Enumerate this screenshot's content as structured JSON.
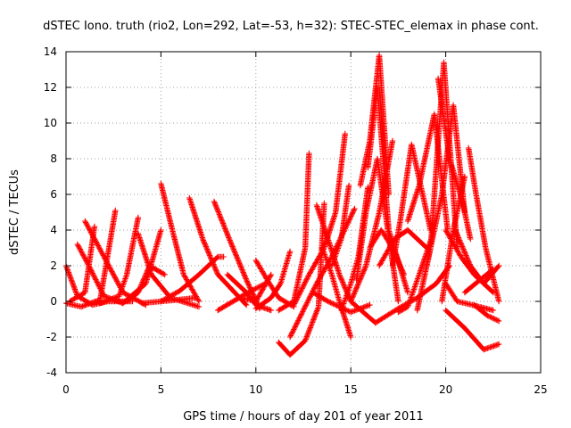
{
  "chart_data": {
    "type": "scatter",
    "title": "dSTEC Iono. truth (rio2, Lon=292, Lat=-53, h=32): STEC-STEC_elemax in phase cont.",
    "xlabel": "GPS time / hours of day 201 of year 2011",
    "ylabel": "dSTEC  / TECUs",
    "xlim": [
      0,
      25
    ],
    "ylim": [
      -4,
      14
    ],
    "x_ticks": [
      0,
      5,
      10,
      15,
      20,
      25
    ],
    "y_ticks": [
      -4,
      -2,
      0,
      2,
      4,
      6,
      8,
      10,
      12,
      14
    ],
    "x_tick_labels": [
      "0",
      "5",
      "10",
      "15",
      "20",
      "25"
    ],
    "y_tick_labels": [
      "-4",
      "-2",
      "0",
      "2",
      "4",
      "6",
      "8",
      "10",
      "12",
      "14"
    ],
    "grid": true,
    "marker": "plus",
    "color": "#ff0000",
    "series": [
      {
        "x": [
          0,
          0.8,
          1.8,
          2.6
        ],
        "y": [
          -0.1,
          -0.3,
          0.1,
          5.1
        ]
      },
      {
        "x": [
          0,
          0.6,
          1.4,
          2.2,
          3.5
        ],
        "y": [
          2.0,
          0.3,
          -0.2,
          0.0,
          0.0
        ]
      },
      {
        "x": [
          0.6,
          1.2,
          2.0,
          3.0
        ],
        "y": [
          3.2,
          2.0,
          0.3,
          -0.1
        ]
      },
      {
        "x": [
          1.0,
          2.0,
          3.0,
          4.2
        ],
        "y": [
          4.5,
          2.5,
          0.5,
          -0.2
        ]
      },
      {
        "x": [
          0.2,
          1.0,
          1.5
        ],
        "y": [
          0.0,
          0.5,
          4.2
        ]
      },
      {
        "x": [
          1.8,
          2.8,
          3.2,
          3.8
        ],
        "y": [
          -0.1,
          0.3,
          1.5,
          4.7
        ]
      },
      {
        "x": [
          3.8,
          4.5,
          5.5,
          7.0
        ],
        "y": [
          3.8,
          1.5,
          0.2,
          -0.3
        ]
      },
      {
        "x": [
          3.0,
          4.2,
          5.0
        ],
        "y": [
          -0.1,
          1.0,
          4.0
        ]
      },
      {
        "x": [
          3.2,
          3.8,
          4.4,
          5.2
        ],
        "y": [
          0.0,
          0.5,
          2.0,
          1.5
        ]
      },
      {
        "x": [
          4.0,
          5.0,
          6.0,
          6.8
        ],
        "y": [
          -0.1,
          0.0,
          0.1,
          0.2
        ]
      },
      {
        "x": [
          5.0,
          5.6,
          6.2,
          7.0
        ],
        "y": [
          6.6,
          4.0,
          1.5,
          0.0
        ]
      },
      {
        "x": [
          6.5,
          7.2,
          8.0,
          9.5
        ],
        "y": [
          5.8,
          3.5,
          1.5,
          -0.2
        ]
      },
      {
        "x": [
          7.8,
          8.6,
          9.5,
          10.2
        ],
        "y": [
          5.6,
          3.5,
          1.2,
          -0.4
        ]
      },
      {
        "x": [
          5.0,
          6.0,
          7.0,
          8.0,
          8.3
        ],
        "y": [
          0.0,
          0.6,
          1.5,
          2.5,
          2.5
        ]
      },
      {
        "x": [
          8.5,
          9.5,
          10.0,
          10.8
        ],
        "y": [
          1.5,
          0.5,
          -0.2,
          -0.5
        ]
      },
      {
        "x": [
          8.0,
          8.8,
          9.6,
          10.5
        ],
        "y": [
          -0.5,
          0.0,
          0.5,
          1.0
        ]
      },
      {
        "x": [
          9.2,
          10.0,
          10.8
        ],
        "y": [
          0.2,
          0.0,
          1.5
        ]
      },
      {
        "x": [
          10.0,
          10.6,
          11.2,
          12.0
        ],
        "y": [
          2.3,
          1.2,
          0.2,
          -0.3
        ]
      },
      {
        "x": [
          10.0,
          10.8,
          11.3,
          11.8
        ],
        "y": [
          -0.4,
          0.2,
          1.0,
          2.8
        ]
      },
      {
        "x": [
          11.2,
          11.8,
          12.6,
          13.3,
          13.6
        ],
        "y": [
          -2.3,
          -3.0,
          -2.2,
          -0.3,
          5.5
        ]
      },
      {
        "x": [
          11.2,
          12.0,
          12.6,
          12.8
        ],
        "y": [
          -0.5,
          0.0,
          3.0,
          8.3
        ]
      },
      {
        "x": [
          12.0,
          12.8,
          13.6,
          14.2,
          14.7
        ],
        "y": [
          -0.2,
          1.5,
          3.0,
          5.0,
          9.4
        ]
      },
      {
        "x": [
          11.8,
          12.5,
          13.2,
          14.0,
          15.2
        ],
        "y": [
          -2.0,
          -0.5,
          1.0,
          2.5,
          5.2
        ]
      },
      {
        "x": [
          13.2,
          13.8,
          14.4,
          15.0,
          16.3
        ],
        "y": [
          5.4,
          3.5,
          1.5,
          0.0,
          -1.2
        ]
      },
      {
        "x": [
          13.5,
          14.0,
          14.4,
          15.0
        ],
        "y": [
          3.0,
          1.5,
          0.0,
          -2.0
        ]
      },
      {
        "x": [
          13.0,
          13.8,
          15.0,
          16.0
        ],
        "y": [
          0.5,
          0.0,
          -0.6,
          -0.2
        ]
      },
      {
        "x": [
          14.0,
          14.5,
          14.9
        ],
        "y": [
          2.0,
          3.5,
          6.5
        ]
      },
      {
        "x": [
          14.5,
          15.0,
          15.4,
          15.9
        ],
        "y": [
          -0.5,
          1.0,
          2.5,
          6.4
        ]
      },
      {
        "x": [
          15.0,
          15.8,
          16.5,
          17.2
        ],
        "y": [
          0.0,
          2.0,
          5.0,
          9.0
        ]
      },
      {
        "x": [
          15.3,
          15.8,
          16.4,
          17.5
        ],
        "y": [
          1.2,
          5.0,
          8.0,
          0.0
        ]
      },
      {
        "x": [
          15.5,
          16.0,
          16.5,
          17.0
        ],
        "y": [
          6.5,
          9.0,
          13.8,
          6.0
        ]
      },
      {
        "x": [
          15.9,
          16.4,
          17.0,
          18.0
        ],
        "y": [
          7.5,
          12.0,
          4.0,
          0.5
        ]
      },
      {
        "x": [
          16.0,
          16.6,
          17.2,
          17.8
        ],
        "y": [
          3.0,
          4.0,
          3.0,
          1.5
        ]
      },
      {
        "x": [
          16.5,
          17.3,
          18.0,
          19.0
        ],
        "y": [
          2.0,
          3.5,
          4.0,
          3.0
        ]
      },
      {
        "x": [
          17.2,
          17.6,
          18.2,
          19.2
        ],
        "y": [
          2.0,
          4.5,
          8.8,
          4.0
        ]
      },
      {
        "x": [
          17.5,
          18.0,
          18.6,
          19.4
        ],
        "y": [
          -0.6,
          -0.3,
          1.5,
          4.0
        ]
      },
      {
        "x": [
          16.3,
          17.5,
          18.5,
          19.5,
          20.2
        ],
        "y": [
          -1.2,
          -0.4,
          0.2,
          1.0,
          2.0
        ]
      },
      {
        "x": [
          18.0,
          18.6,
          19.4,
          20.1
        ],
        "y": [
          4.5,
          6.5,
          10.5,
          4.0
        ]
      },
      {
        "x": [
          18.5,
          19.2,
          19.9,
          20.6
        ],
        "y": [
          -0.5,
          3.0,
          13.4,
          3.0
        ]
      },
      {
        "x": [
          19.0,
          19.8,
          20.4,
          21.0
        ],
        "y": [
          2.0,
          6.0,
          11.0,
          5.0
        ]
      },
      {
        "x": [
          19.6,
          20.2,
          20.9,
          21.3
        ],
        "y": [
          12.5,
          8.0,
          5.5,
          3.5
        ]
      },
      {
        "x": [
          20.0,
          20.8,
          21.5,
          22.5
        ],
        "y": [
          4.0,
          2.5,
          1.5,
          0.5
        ]
      },
      {
        "x": [
          20.0,
          20.6,
          21.4,
          22.5
        ],
        "y": [
          1.0,
          0.0,
          -0.2,
          -0.5
        ]
      },
      {
        "x": [
          19.8,
          20.4,
          21.0
        ],
        "y": [
          0.0,
          4.0,
          7.0
        ]
      },
      {
        "x": [
          21.2,
          21.6,
          22.1,
          22.8
        ],
        "y": [
          8.6,
          6.0,
          3.0,
          0.0
        ]
      },
      {
        "x": [
          20.5,
          21.3,
          22.0,
          22.8
        ],
        "y": [
          4.0,
          2.0,
          1.0,
          2.0
        ]
      },
      {
        "x": [
          21.5,
          22.2,
          22.8
        ],
        "y": [
          -0.2,
          -0.8,
          -1.1
        ]
      },
      {
        "x": [
          20.0,
          21.0,
          22.0,
          22.8
        ],
        "y": [
          -0.5,
          -1.5,
          -2.7,
          -2.4
        ]
      },
      {
        "x": [
          21.0,
          21.8,
          22.5
        ],
        "y": [
          0.5,
          1.2,
          1.8
        ]
      }
    ]
  }
}
